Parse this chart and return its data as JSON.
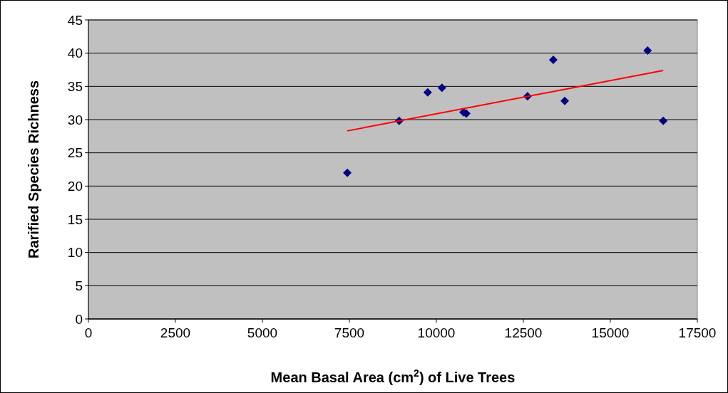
{
  "chart_data": {
    "type": "scatter",
    "xlabel": "Mean Basal Area (cm$^{2}$) of Live Trees",
    "ylabel": "Rarified Species Richness",
    "xlim": [
      0,
      17500
    ],
    "xticks": [
      0,
      2500,
      5000,
      7500,
      10000,
      12500,
      15000,
      17500
    ],
    "ylim": [
      0,
      45
    ],
    "yticks": [
      0,
      5,
      10,
      15,
      20,
      25,
      30,
      35,
      40,
      45
    ],
    "grid": "y",
    "series": [
      {
        "color": "#000080",
        "marker": "diamond",
        "x": [
          7440,
          8930,
          9750,
          10160,
          10780,
          10860,
          12620,
          13360,
          13690,
          16070,
          16520
        ],
        "values": [
          22.0,
          29.8,
          34.1,
          34.8,
          31.1,
          30.9,
          33.5,
          39.0,
          32.8,
          40.4,
          29.8
        ]
      },
      {
        "type": "line",
        "color": "#ff0000",
        "marker": "none",
        "x": [
          7440,
          16520
        ],
        "values": [
          28.3,
          37.4
        ]
      }
    ]
  }
}
